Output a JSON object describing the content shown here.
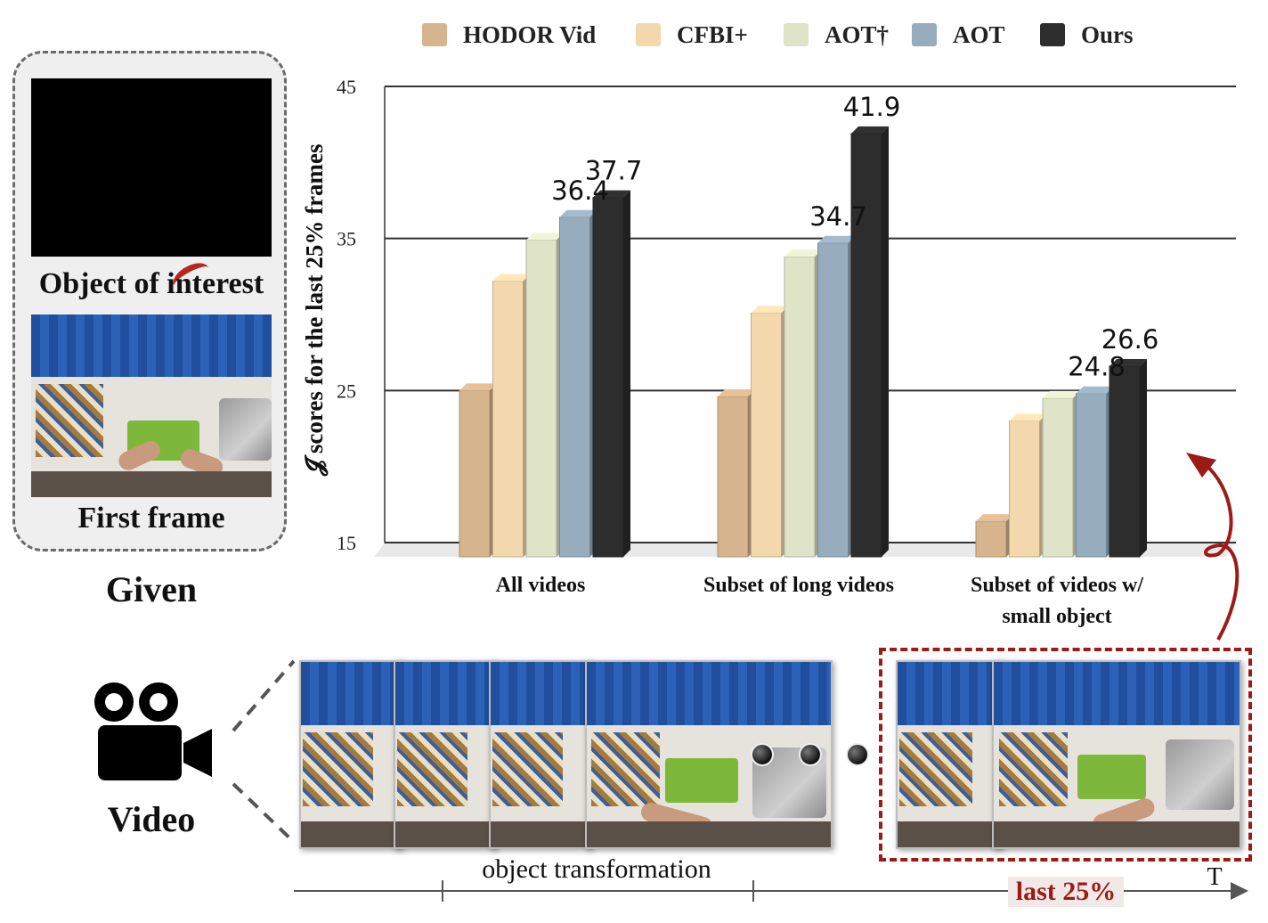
{
  "given": {
    "object_label": "Object of interest",
    "first_frame_label": "First frame",
    "caption": "Given"
  },
  "video": {
    "caption": "Video",
    "transformation_label": "object transformation",
    "last_label": "last 25%",
    "time_label": "T"
  },
  "colors": {
    "hodor": "#d6b48d",
    "cfbi": "#f3d8ad",
    "aot_dagger": "#dfe3c8",
    "aot": "#97adbe",
    "ours": "#2d2d2d",
    "accent_red": "#9b1b16"
  },
  "icons": [
    "video-camera-icon",
    "curved-arrow-icon"
  ],
  "chart_data": {
    "type": "bar",
    "categories": [
      "All videos",
      "Subset of long videos",
      "Subset of videos w/ small object"
    ],
    "category_lines": [
      [
        "All videos"
      ],
      [
        "Subset of long videos"
      ],
      [
        "Subset of videos w/",
        "small object"
      ]
    ],
    "series": [
      {
        "name": "HODOR Vid",
        "values": [
          25.0,
          24.6,
          16.4
        ]
      },
      {
        "name": "CFBI+",
        "values": [
          32.2,
          30.1,
          23.0
        ]
      },
      {
        "name": "AOT†",
        "values": [
          34.9,
          33.8,
          24.5
        ]
      },
      {
        "name": "AOT",
        "values": [
          36.4,
          34.7,
          24.8
        ],
        "labels": [
          "36.4",
          "34.7",
          "24.8"
        ]
      },
      {
        "name": "Ours",
        "values": [
          37.7,
          41.9,
          26.6
        ],
        "labels": [
          "37.7",
          "41.9",
          "26.6"
        ]
      }
    ],
    "ylabel": "𝓙 scores for the last 25% frames",
    "ylim": [
      15,
      45
    ],
    "yticks": [
      15,
      25,
      35,
      45
    ],
    "grid": true,
    "legend": "top"
  }
}
